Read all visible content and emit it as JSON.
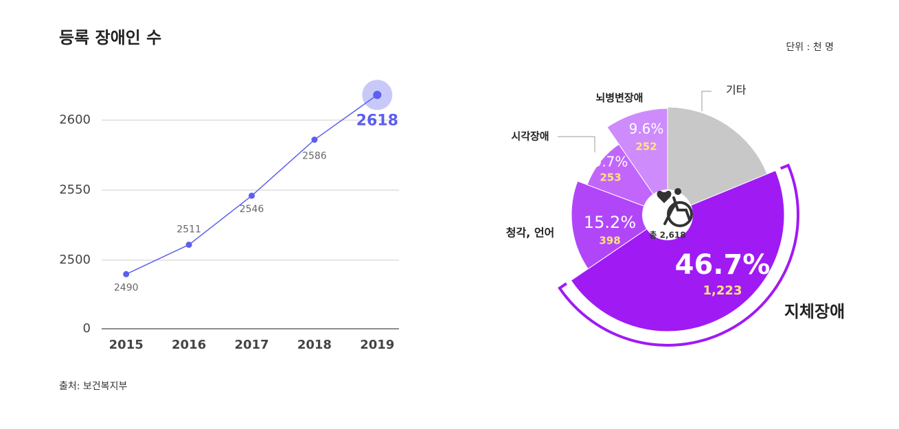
{
  "chart_data": [
    {
      "type": "line",
      "title": "등록 장애인 수",
      "source": "출처: 보건복지부",
      "categories": [
        "2015",
        "2016",
        "2017",
        "2018",
        "2019"
      ],
      "values": [
        2490,
        2511,
        2546,
        2586,
        2618
      ],
      "color": "#5b5ef0",
      "highlight_color": "#c9c9f9",
      "ylim": [
        2450,
        2650
      ],
      "yticks": [
        0,
        2500,
        2550,
        2600
      ],
      "axis_break": true,
      "grid": true
    },
    {
      "type": "pie",
      "unit": "단위 : 천 명",
      "total_label": "총 2,618",
      "categories": [
        "기타",
        "지체장애",
        "청각, 언어",
        "시각장애",
        "뇌병변장애"
      ],
      "values": [
        18.8,
        46.7,
        15.2,
        9.7,
        9.6
      ],
      "value_labels": [
        null,
        "46.7%",
        "15.2%",
        "9.7%",
        "9.6%"
      ],
      "counts": [
        null,
        1223,
        398,
        253,
        252
      ],
      "count_labels": [
        null,
        "1,223",
        "398",
        "253",
        "252"
      ],
      "colors": [
        "#c8c8c8",
        "#a01af4",
        "#b146f9",
        "#c266fb",
        "#cd8bfc"
      ]
    }
  ]
}
